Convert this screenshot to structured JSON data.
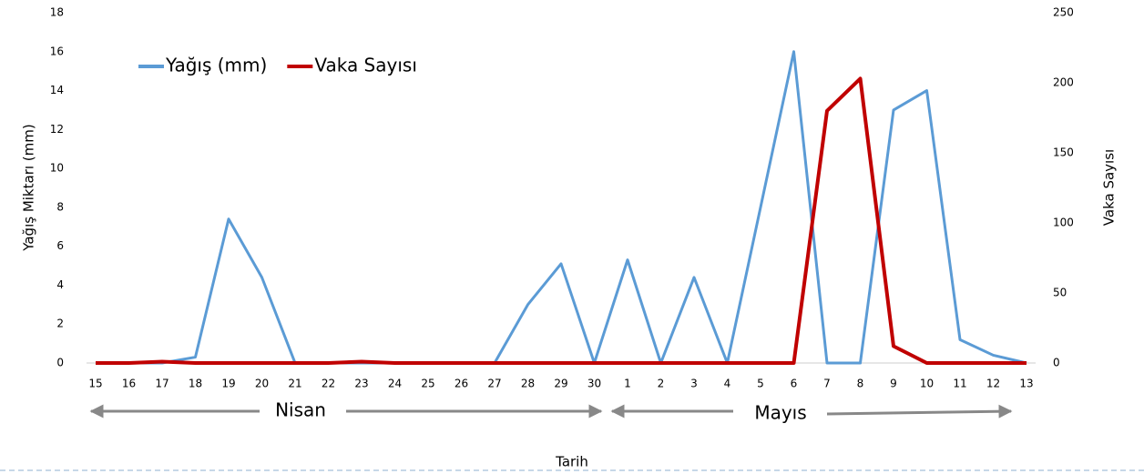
{
  "chart_data": {
    "type": "line",
    "categories": [
      "15",
      "16",
      "17",
      "18",
      "19",
      "20",
      "21",
      "22",
      "23",
      "24",
      "25",
      "26",
      "27",
      "28",
      "29",
      "30",
      "1",
      "2",
      "3",
      "4",
      "5",
      "6",
      "7",
      "8",
      "9",
      "10",
      "11",
      "12",
      "13"
    ],
    "series": [
      {
        "name": "Yağış (mm)",
        "color": "#5b9bd5",
        "axis": "y",
        "values": [
          0,
          0,
          0,
          0.3,
          7.4,
          4.4,
          0,
          0,
          0,
          0,
          0,
          0,
          0,
          3,
          5.1,
          0,
          5.3,
          0,
          4.4,
          0,
          8,
          16,
          0,
          0,
          13,
          14,
          1.2,
          0.4,
          0
        ]
      },
      {
        "name": "Vaka Sayısı",
        "color": "#c00000",
        "axis": "y2",
        "values": [
          0,
          0,
          1,
          0,
          0,
          0,
          0,
          0,
          1,
          0,
          0,
          0,
          0,
          0,
          0,
          0,
          0,
          0,
          0,
          0,
          0,
          0,
          180,
          203,
          12,
          0,
          0,
          0,
          0
        ]
      }
    ],
    "ylabel": "Yağış Miktarı (mm)",
    "y2label": "Vaka Sayısı",
    "xlabel": "Tarih",
    "month_labels": [
      "Nisan",
      "Mayıs"
    ],
    "ylim": [
      0,
      18
    ],
    "yticks": [
      0,
      2,
      4,
      6,
      8,
      10,
      12,
      14,
      16,
      18
    ],
    "y2lim": [
      0,
      250
    ],
    "y2ticks": [
      0,
      50,
      100,
      150,
      200,
      250
    ],
    "grid": false,
    "legend": "top-left"
  }
}
